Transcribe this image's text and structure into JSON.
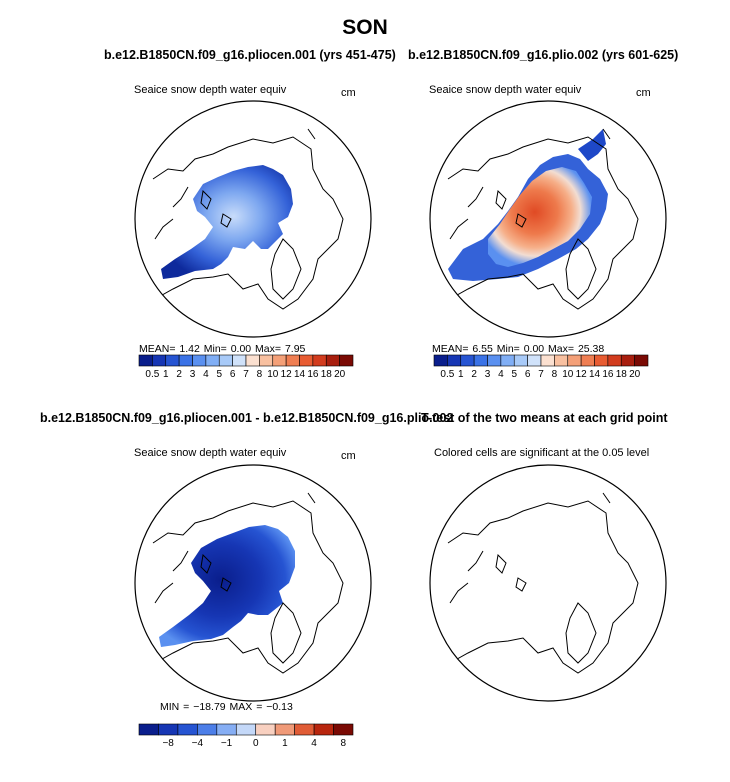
{
  "title": "SON",
  "panels": [
    {
      "title": "b.e12.B1850CN.f09_g16.pliocen.001 (yrs 451-475)",
      "subtitle": "Seaice snow depth water equiv",
      "unit": "cm",
      "stats": "MEAN=    1.42   Min=    0.00   Max=    7.95",
      "colorbar_labels": [
        "0.5",
        "1",
        "2",
        "3",
        "4",
        "5",
        "6",
        "7",
        "8",
        "10",
        "12",
        "14",
        "16",
        "18",
        "20"
      ]
    },
    {
      "title": "b.e12.B1850CN.f09_g16.plio.002 (yrs 601-625)",
      "subtitle": "Seaice snow depth water equiv",
      "unit": "cm",
      "stats": "MEAN=    6.55   Min=    0.00   Max=   25.38",
      "colorbar_labels": [
        "0.5",
        "1",
        "2",
        "3",
        "4",
        "5",
        "6",
        "7",
        "8",
        "10",
        "12",
        "14",
        "16",
        "18",
        "20"
      ]
    },
    {
      "title": "b.e12.B1850CN.f09_g16.pliocen.001 - b.e12.B1850CN.f09_g16.plio.002",
      "subtitle": "Seaice snow depth water equiv",
      "unit": "cm",
      "stats": "MIN = −18.79  MAX =   −0.13",
      "colorbar_labels": [
        "−8",
        "−4",
        "−1",
        "0",
        "1",
        "4",
        "8"
      ]
    },
    {
      "title": "T-test of the two means at each grid point",
      "subtitle": "Colored cells are significant at the 0.05 level"
    }
  ],
  "colors": {
    "seq": [
      "#0a1e8c",
      "#1636b4",
      "#2654d2",
      "#3a72e6",
      "#5a90f0",
      "#80aef5",
      "#a8caf8",
      "#d0e2fa",
      "#fbe0d0",
      "#f8c0a0",
      "#f4a078",
      "#ef7e52",
      "#e85c32",
      "#d23c1e",
      "#a81e0e",
      "#7a0a04"
    ],
    "div": [
      "#0a1e8c",
      "#1636b4",
      "#2654d2",
      "#4c7ee8",
      "#86aef4",
      "#c4d8f8",
      "#f8d0c0",
      "#f09a78",
      "#e05c36",
      "#b8260e",
      "#7a0a04"
    ]
  }
}
